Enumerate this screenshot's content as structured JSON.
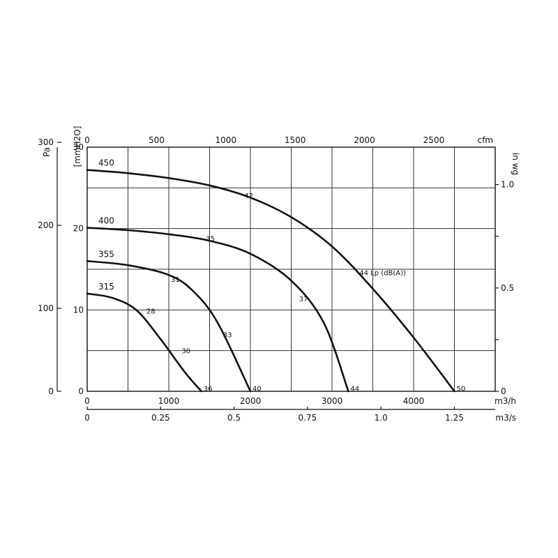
{
  "chart_data": {
    "type": "line",
    "grid": true,
    "x_axis": {
      "unit": "m3/h",
      "range": [
        0,
        5000
      ],
      "ticks": [
        0,
        500,
        1000,
        1500,
        2000,
        2500,
        3000,
        3500,
        4000,
        4500,
        5000
      ],
      "tick_labels": [
        {
          "value": 0,
          "label": "0"
        },
        {
          "value": 1000,
          "label": "1000"
        },
        {
          "value": 2000,
          "label": "2000"
        },
        {
          "value": 3000,
          "label": "3000"
        },
        {
          "value": 4000,
          "label": "4000"
        }
      ]
    },
    "x_axis_m3s": {
      "unit": "m3/s",
      "tick_labels": [
        {
          "value": 0,
          "label": "0"
        },
        {
          "value": 0.25,
          "label": "0.25"
        },
        {
          "value": 0.5,
          "label": "0.5"
        },
        {
          "value": 0.75,
          "label": "0.75"
        },
        {
          "value": 1.0,
          "label": "1.0"
        },
        {
          "value": 1.25,
          "label": "1.25"
        }
      ]
    },
    "x_axis_cfm": {
      "unit": "cfm",
      "tick_labels": [
        {
          "value": 0,
          "label": "0"
        },
        {
          "value": 500,
          "label": "500"
        },
        {
          "value": 1000,
          "label": "1000"
        },
        {
          "value": 1500,
          "label": "1500"
        },
        {
          "value": 2000,
          "label": "2000"
        },
        {
          "value": 2500,
          "label": "2500"
        }
      ]
    },
    "y_axis": {
      "unit": "[mmH2O]",
      "range": [
        0,
        30
      ],
      "tick_labels": [
        {
          "value": 0,
          "label": "0"
        },
        {
          "value": 10,
          "label": "10"
        },
        {
          "value": 20,
          "label": "20"
        },
        {
          "value": 30,
          "label": "30"
        }
      ]
    },
    "y_axis_pa": {
      "unit": "Pa",
      "tick_labels": [
        {
          "value": 0,
          "label": "0"
        },
        {
          "value": 100,
          "label": "100"
        },
        {
          "value": 200,
          "label": "200"
        },
        {
          "value": 300,
          "label": "300"
        }
      ]
    },
    "y_axis_inwg": {
      "unit": "in wg",
      "tick_labels": [
        {
          "value": 0,
          "label": "0"
        },
        {
          "value": 0.5,
          "label": "0.5"
        },
        {
          "value": 1.0,
          "label": "1.0"
        }
      ]
    },
    "series": [
      {
        "name": "450",
        "points": [
          [
            0,
            27.2
          ],
          [
            500,
            26.8
          ],
          [
            1000,
            26.2
          ],
          [
            1500,
            25.3
          ],
          [
            2000,
            23.8
          ],
          [
            2500,
            21.4
          ],
          [
            3000,
            17.8
          ],
          [
            3500,
            12.6
          ],
          [
            4000,
            6.6
          ],
          [
            4500,
            0
          ]
        ],
        "noise_labels": [
          {
            "x": 1900,
            "y": 24.1,
            "label": "42"
          },
          {
            "x": 3310,
            "y": 14.6,
            "label": "44 Lp (dB(A))"
          },
          {
            "x": 4500,
            "y": 0.4,
            "label": "50"
          }
        ]
      },
      {
        "name": "400",
        "points": [
          [
            0,
            20.1
          ],
          [
            500,
            19.8
          ],
          [
            1000,
            19.3
          ],
          [
            1500,
            18.5
          ],
          [
            2000,
            16.9
          ],
          [
            2500,
            13.6
          ],
          [
            2900,
            8.4
          ],
          [
            3200,
            0
          ]
        ],
        "noise_labels": [
          {
            "x": 1430,
            "y": 18.8,
            "label": "35"
          },
          {
            "x": 2570,
            "y": 11.4,
            "label": "37"
          },
          {
            "x": 3200,
            "y": 0.4,
            "label": "44"
          }
        ]
      },
      {
        "name": "355",
        "points": [
          [
            0,
            16.0
          ],
          [
            500,
            15.5
          ],
          [
            1000,
            14.3
          ],
          [
            1300,
            12.3
          ],
          [
            1600,
            8.4
          ],
          [
            2000,
            0
          ]
        ],
        "noise_labels": [
          {
            "x": 1000,
            "y": 13.8,
            "label": "31"
          },
          {
            "x": 1640,
            "y": 7.0,
            "label": "33"
          },
          {
            "x": 2000,
            "y": 0.4,
            "label": "40"
          }
        ]
      },
      {
        "name": "315",
        "points": [
          [
            0,
            12.0
          ],
          [
            300,
            11.5
          ],
          [
            600,
            10.0
          ],
          [
            900,
            6.4
          ],
          [
            1200,
            2.3
          ],
          [
            1400,
            0
          ]
        ],
        "noise_labels": [
          {
            "x": 700,
            "y": 9.9,
            "label": "28"
          },
          {
            "x": 1130,
            "y": 5.0,
            "label": "30"
          },
          {
            "x": 1400,
            "y": 0.4,
            "label": "36"
          }
        ]
      }
    ]
  }
}
